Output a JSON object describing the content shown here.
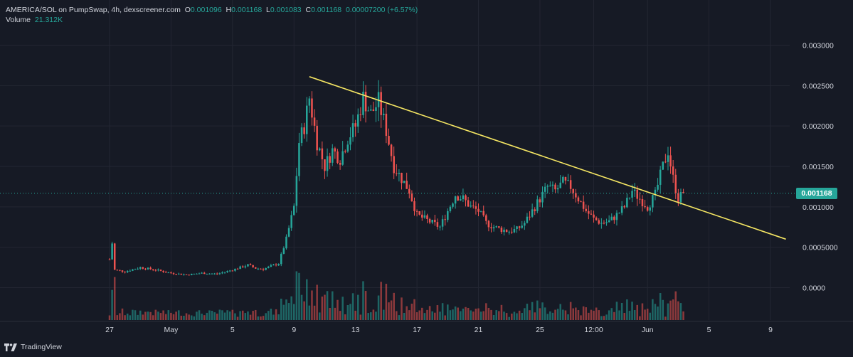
{
  "legend": {
    "symbol": "AMERICA/SOL on PumpSwap, 4h, dexscreener.com",
    "o_label": "O",
    "o_value": "0.001096",
    "h_label": "H",
    "h_value": "0.001168",
    "l_label": "L",
    "l_value": "0.001083",
    "c_label": "C",
    "c_value": "0.001168",
    "change": "0.00007200 (+6.57%)",
    "volume_label": "Volume",
    "volume_value": "21.312K"
  },
  "last_price_label": "0.001168",
  "footer": {
    "brand": "TradingView",
    "logo_icon": "tradingview-logo-icon"
  },
  "colors": {
    "up": "#26a69a",
    "down": "#ef5350",
    "trendline": "#f5e663",
    "background": "#161a25",
    "grid": "#232632"
  },
  "chart_data": {
    "type": "candlestick",
    "interval": "4h",
    "y_ticks": [
      "0.003000",
      "0.002500",
      "0.002000",
      "0.001500",
      "0.001000",
      "0.0005000",
      "0.0000"
    ],
    "y_tick_values": [
      0.003,
      0.0025,
      0.002,
      0.0015,
      0.001,
      0.0005,
      0.0
    ],
    "ylim": [
      -0.0004,
      0.0034
    ],
    "x_ticks": [
      "27",
      "May",
      "5",
      "9",
      "13",
      "17",
      "21",
      "25",
      "12:00",
      "Jun",
      "5",
      "9"
    ],
    "x_tick_dates": [
      "2025-04-27",
      "2025-05-01",
      "2025-05-05",
      "2025-05-09",
      "2025-05-13",
      "2025-05-17",
      "2025-05-21",
      "2025-05-25",
      "2025-05-28T12:00",
      "2025-06-01",
      "2025-06-05",
      "2025-06-09"
    ],
    "last_price": 0.001168,
    "grid": true,
    "trendline": {
      "start": [
        "2025-05-10T00:00",
        0.00261
      ],
      "end": [
        "2025-06-10T00:00",
        0.0006
      ]
    },
    "price_path": [
      [
        "2025-04-27T00:00",
        0.00035
      ],
      [
        "2025-04-27T04:00",
        0.00055
      ],
      [
        "2025-04-27T08:00",
        0.00022
      ],
      [
        "2025-04-28T00:00",
        0.0002
      ],
      [
        "2025-04-29T00:00",
        0.00025
      ],
      [
        "2025-04-30T00:00",
        0.00022
      ],
      [
        "2025-05-01T00:00",
        0.00018
      ],
      [
        "2025-05-02T00:00",
        0.00016
      ],
      [
        "2025-05-03T00:00",
        0.00018
      ],
      [
        "2025-05-04T00:00",
        0.00017
      ],
      [
        "2025-05-05T00:00",
        0.00022
      ],
      [
        "2025-05-06T00:00",
        0.00028
      ],
      [
        "2025-05-06T12:00",
        0.00024
      ],
      [
        "2025-05-07T00:00",
        0.00023
      ],
      [
        "2025-05-08T00:00",
        0.0003
      ],
      [
        "2025-05-08T12:00",
        0.0006
      ],
      [
        "2025-05-09T00:00",
        0.001
      ],
      [
        "2025-05-09T08:00",
        0.0018
      ],
      [
        "2025-05-09T16:00",
        0.002
      ],
      [
        "2025-05-10T00:00",
        0.00235
      ],
      [
        "2025-05-10T12:00",
        0.0018
      ],
      [
        "2025-05-11T00:00",
        0.0015
      ],
      [
        "2025-05-11T12:00",
        0.0017
      ],
      [
        "2025-05-12T00:00",
        0.0016
      ],
      [
        "2025-05-12T12:00",
        0.00185
      ],
      [
        "2025-05-13T00:00",
        0.002
      ],
      [
        "2025-05-13T12:00",
        0.00235
      ],
      [
        "2025-05-14T00:00",
        0.00215
      ],
      [
        "2025-05-14T12:00",
        0.0023
      ],
      [
        "2025-05-15T00:00",
        0.00195
      ],
      [
        "2025-05-15T12:00",
        0.0015
      ],
      [
        "2025-05-16T00:00",
        0.00135
      ],
      [
        "2025-05-16T12:00",
        0.0012
      ],
      [
        "2025-05-17T00:00",
        0.0009
      ],
      [
        "2025-05-17T12:00",
        0.00085
      ],
      [
        "2025-05-18T00:00",
        0.0008
      ],
      [
        "2025-05-18T12:00",
        0.00075
      ],
      [
        "2025-05-19T00:00",
        0.00095
      ],
      [
        "2025-05-19T12:00",
        0.00115
      ],
      [
        "2025-05-20T00:00",
        0.0011
      ],
      [
        "2025-05-20T12:00",
        0.001
      ],
      [
        "2025-05-21T00:00",
        0.00095
      ],
      [
        "2025-05-21T12:00",
        0.0008
      ],
      [
        "2025-05-22T00:00",
        0.00075
      ],
      [
        "2025-05-22T12:00",
        0.00072
      ],
      [
        "2025-05-23T00:00",
        0.0007
      ],
      [
        "2025-05-23T12:00",
        0.00072
      ],
      [
        "2025-05-24T00:00",
        0.0008
      ],
      [
        "2025-05-24T12:00",
        0.00095
      ],
      [
        "2025-05-25T00:00",
        0.0011
      ],
      [
        "2025-05-25T12:00",
        0.00125
      ],
      [
        "2025-05-26T00:00",
        0.0012
      ],
      [
        "2025-05-26T12:00",
        0.0013
      ],
      [
        "2025-05-27T00:00",
        0.00125
      ],
      [
        "2025-05-27T12:00",
        0.0011
      ],
      [
        "2025-05-28T00:00",
        0.00095
      ],
      [
        "2025-05-28T12:00",
        0.00085
      ],
      [
        "2025-05-29T00:00",
        0.0008
      ],
      [
        "2025-05-29T12:00",
        0.00082
      ],
      [
        "2025-05-30T00:00",
        0.0009
      ],
      [
        "2025-05-30T12:00",
        0.001
      ],
      [
        "2025-05-31T00:00",
        0.0012
      ],
      [
        "2025-05-31T12:00",
        0.0011
      ],
      [
        "2025-06-01T00:00",
        0.001
      ],
      [
        "2025-06-01T12:00",
        0.00115
      ],
      [
        "2025-06-02T00:00",
        0.0015
      ],
      [
        "2025-06-02T08:00",
        0.0017
      ],
      [
        "2025-06-02T16:00",
        0.00135
      ],
      [
        "2025-06-03T00:00",
        0.0011
      ],
      [
        "2025-06-03T08:00",
        0.001168
      ]
    ]
  }
}
